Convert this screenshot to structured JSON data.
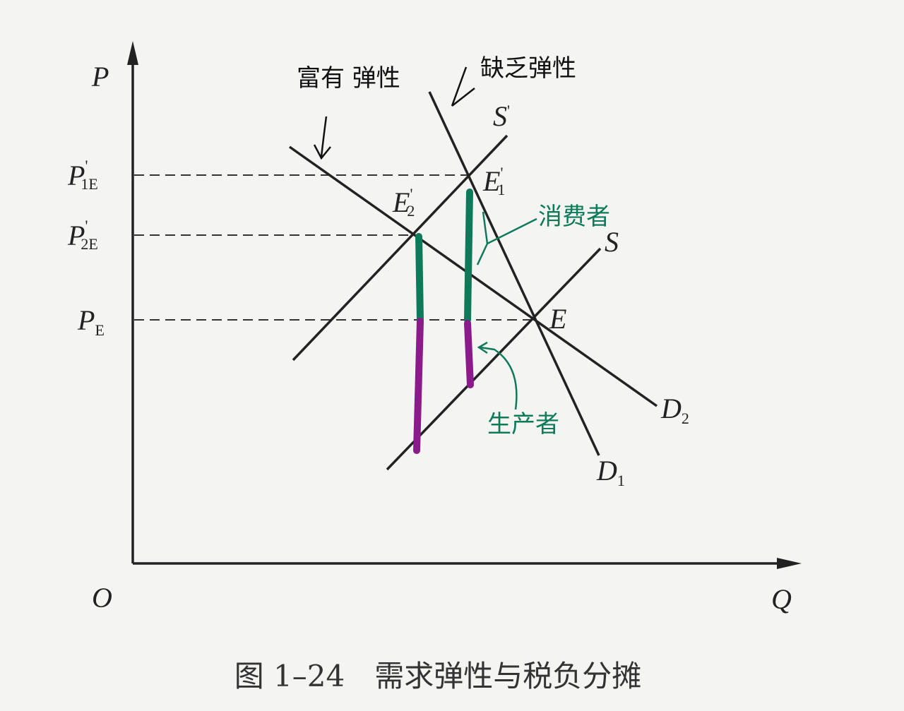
{
  "axes": {
    "y": "P",
    "x": "Q",
    "origin": "O"
  },
  "price_labels": [
    {
      "main": "P",
      "prime": "'",
      "sub": "1E"
    },
    {
      "main": "P",
      "prime": "'",
      "sub": "2E"
    },
    {
      "main": "P",
      "sub": "E"
    }
  ],
  "curves": {
    "s_prime": {
      "main": "S",
      "prime": "'"
    },
    "s": {
      "main": "S"
    },
    "d1": {
      "main": "D",
      "sub": "1"
    },
    "d2": {
      "main": "D",
      "sub": "2"
    }
  },
  "points": {
    "e": {
      "main": "E"
    },
    "e1": {
      "main": "E",
      "prime": "'",
      "sub": "1"
    },
    "e2": {
      "main": "E",
      "prime": "'",
      "sub": "2"
    }
  },
  "annotations": {
    "elastic": "富有 弹性",
    "inelastic": "缺乏弹性",
    "consumer": "消费者",
    "producer": "生产者"
  },
  "caption": "图 1–24　需求弹性与税负分摊"
}
